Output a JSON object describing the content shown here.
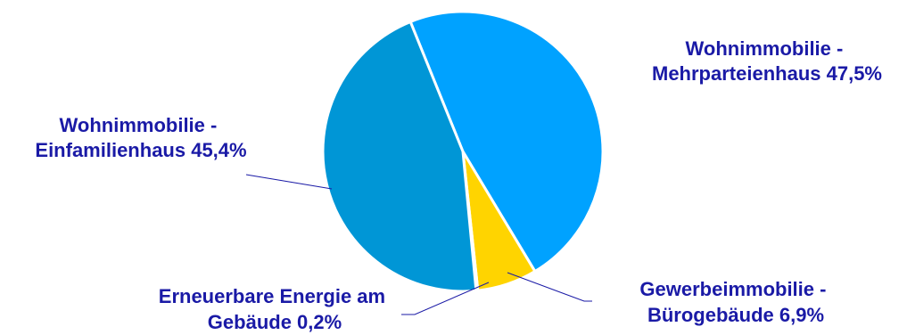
{
  "chart_data": {
    "type": "pie",
    "title": "",
    "slices": [
      {
        "line1": "Wohnimmobilie -",
        "line2": "Mehrparteienhaus 47,5%",
        "value": 47.5,
        "color": "#00a2ff"
      },
      {
        "line1": "Gewerbeimmobilie -",
        "line2": "Bürogebäude 6,9%",
        "value": 6.9,
        "color": "#ffd400"
      },
      {
        "line1": "Erneuerbare Energie am",
        "line2": "Gebäude 0,2%",
        "value": 0.2,
        "color": "#0096d6"
      },
      {
        "line1": "Wohnimmobilie -",
        "line2": "Einfamilienhaus 45,4%",
        "value": 45.4,
        "color": "#0096d6"
      }
    ],
    "legend": "none",
    "label_color": "#1a1aa6"
  }
}
